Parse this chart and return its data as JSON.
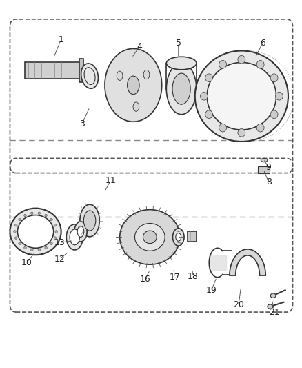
{
  "title": "",
  "background_color": "#ffffff",
  "fig_width": 4.39,
  "fig_height": 5.33,
  "dpi": 100,
  "line_color": "#333333",
  "label_color": "#222222",
  "label_fontsize": 9,
  "border_line_color": "#555555",
  "dash_line_color": "#888888"
}
